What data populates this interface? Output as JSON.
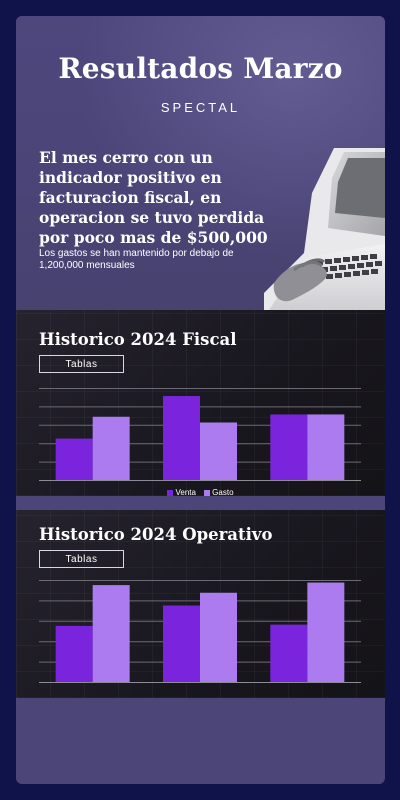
{
  "header": {
    "title": "Resultados Marzo",
    "subtitle": "SPECTAL",
    "summary": "El mes cerro con un indicador positivo en facturacion fiscal, en operacion se tuvo perdida por poco mas de $500,000",
    "note": "Los gastos se han mantenido por debajo de 1,200,000 mensuales"
  },
  "colors": {
    "venta": "#7a25dd",
    "gasto": "#ab7bef",
    "background": "#10124a",
    "card": "#4b4578"
  },
  "fiscal": {
    "title": "Historico 2024 Fiscal",
    "button": "Tablas"
  },
  "operativo": {
    "title": "Historico 2024 Operativo",
    "button": "Tablas"
  },
  "chart_data": [
    {
      "type": "bar",
      "series": [
        {
          "name": "Venta",
          "values": [
            36,
            73,
            57
          ]
        },
        {
          "name": "Gasto",
          "values": [
            55,
            50,
            57
          ]
        }
      ],
      "ylim": [
        0,
        80
      ],
      "grid": true,
      "legend": "bottom"
    },
    {
      "type": "bar",
      "series": [
        {
          "name": "Venta",
          "values": [
            44,
            60,
            45
          ]
        },
        {
          "name": "Gasto",
          "values": [
            76,
            70,
            78
          ]
        }
      ],
      "ylim": [
        0,
        80
      ],
      "grid": true,
      "legend": "none"
    }
  ]
}
